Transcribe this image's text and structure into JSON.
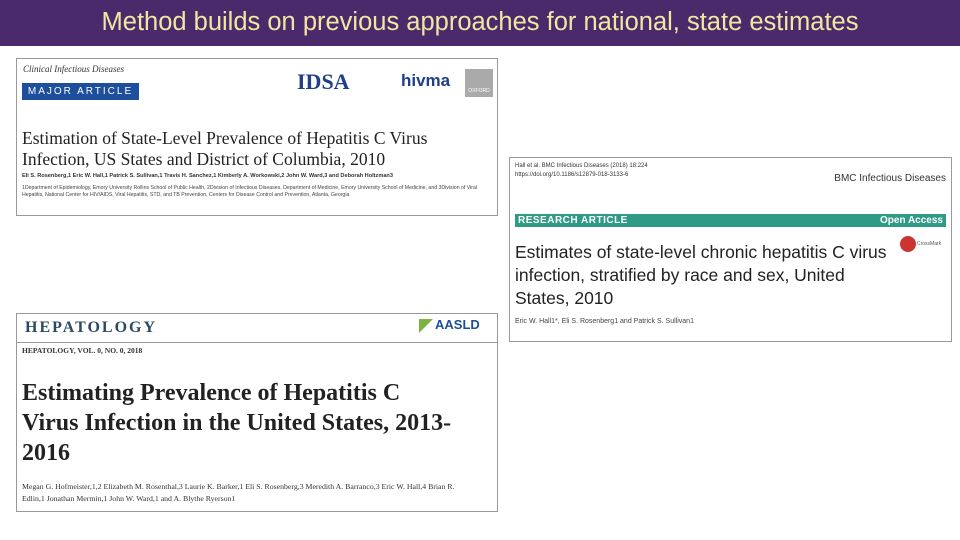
{
  "header": {
    "title": "Method builds on previous approaches for national, state estimates"
  },
  "papers": [
    {
      "journal": "Clinical Infectious Diseases",
      "article_type": "MAJOR ARTICLE",
      "logos": [
        "IDSA",
        "hivma",
        "OXFORD"
      ],
      "title": "Estimation of State-Level Prevalence of Hepatitis C Virus Infection, US States and District of Columbia, 2010",
      "authors": "Eli S. Rosenberg,1 Eric W. Hall,1 Patrick S. Sullivan,1 Travis H. Sanchez,1 Kimberly A. Workowski,2 John W. Ward,3 and Deborah Holtzman3",
      "affiliations": "1Department of Epidemiology, Emory University Rollins School of Public Health, 2Division of Infectious Diseases, Department of Medicine, Emory University School of Medicine, and 3Division of Viral Hepatitis, National Center for HIV/AIDS, Viral Hepatitis, STD, and TB Prevention, Centers for Disease Control and Prevention, Atlanta, Georgia"
    },
    {
      "citation": "Hall et al. BMC Infectious Diseases (2018) 18:224",
      "doi": "https://doi.org/10.1186/s12879-018-3133-6",
      "journal": "BMC Infectious Diseases",
      "article_type": "RESEARCH ARTICLE",
      "access": "Open Access",
      "crossmark": "CrossMark",
      "title": "Estimates of state-level chronic hepatitis C virus infection, stratified by race and sex, United States, 2010",
      "authors": "Eric W. Hall1*, Eli S. Rosenberg1 and Patrick S. Sullivan1"
    },
    {
      "journal": "HEPATOLOGY",
      "logo": "AASLD",
      "issue": "HEPATOLOGY, VOL. 0, NO. 0, 2018",
      "title": "Estimating Prevalence of Hepatitis C Virus Infection in the United States, 2013-2016",
      "authors": "Megan G. Hofmeister,1,2 Elizabeth M. Rosenthal,3 Laurie K. Barker,1 Eli S. Rosenberg,3 Meredith A. Barranco,3 Eric W. Hall,4 Brian R. Edlin,1 Jonathan Mermin,1 John W. Ward,1 and A. Blythe Ryerson1"
    }
  ]
}
